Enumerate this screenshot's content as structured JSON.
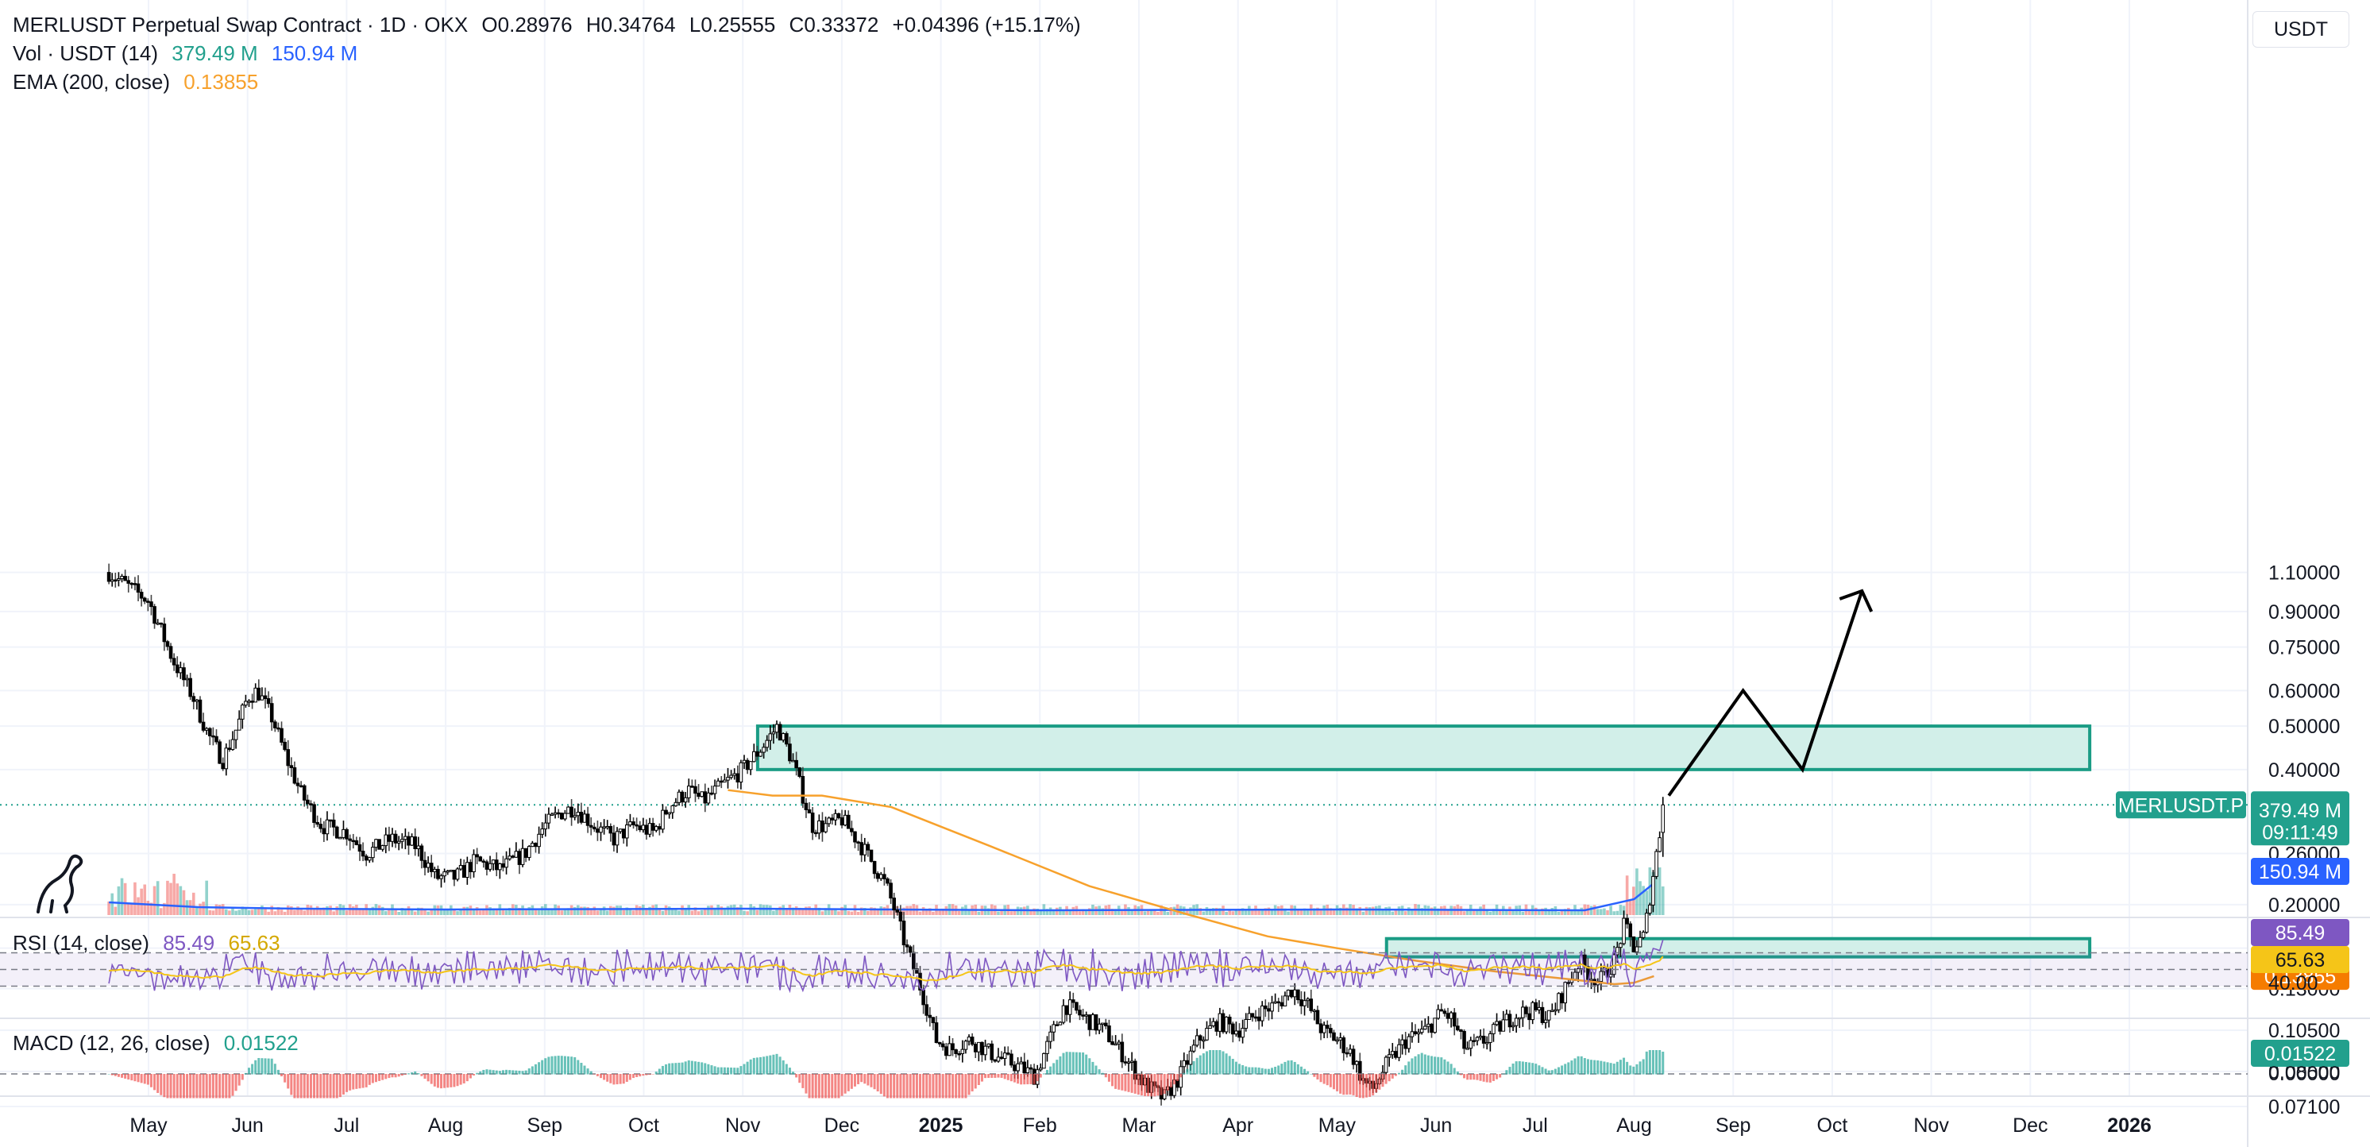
{
  "header": {
    "symbol_line": "MERLUSDT Perpetual Swap Contract · 1D · OKX",
    "open": "O0.28976",
    "high": "H0.34764",
    "low": "L0.25555",
    "close": "C0.33372",
    "change": "+0.04396 (+15.17%)",
    "vol_label": "Vol · USDT (14)",
    "vol_value": "379.49 M",
    "vol_ma": "150.94 M",
    "ema_label": "EMA (200, close)",
    "ema_value": "0.13855",
    "rsi_label": "RSI (14, close)",
    "rsi_value": "85.49",
    "rsi_ma": "65.63",
    "macd_label": "MACD (12, 26, close)",
    "macd_value": "0.01522",
    "currency": "USDT"
  },
  "colors": {
    "up": "#26a69a",
    "down": "#ef5350",
    "candle": "#000000",
    "ema": "#f7a12c",
    "vol_ma": "#2962ff",
    "rsi": "#7e57c2",
    "rsi_ma": "#f5c518",
    "zone_fill": "#d2efe9",
    "zone_stroke": "#1a9c85",
    "badge_teal": "#22a08d",
    "badge_orange": "#f57c00",
    "badge_blue": "#2962ff",
    "badge_purple": "#7e57c2",
    "badge_yellow": "#f5c518"
  },
  "chart_data": {
    "type": "candlestick",
    "title": "MERLUSDT Perpetual Swap Contract · 1D · OKX",
    "price_scale": "log",
    "y_ticks": [
      "1.10000",
      "0.90000",
      "0.75000",
      "0.60000",
      "0.50000",
      "0.40000",
      "0.26000",
      "0.20000",
      "0.16000",
      "0.13000",
      "0.10500",
      "0.08500",
      "0.07100"
    ],
    "y_tick_values": [
      1.1,
      0.9,
      0.75,
      0.6,
      0.5,
      0.4,
      0.26,
      0.2,
      0.16,
      0.13,
      0.105,
      0.085,
      0.071
    ],
    "x_ticks": [
      "May",
      "Jun",
      "Jul",
      "Aug",
      "Sep",
      "Oct",
      "Nov",
      "Dec",
      "2025",
      "Feb",
      "Mar",
      "Apr",
      "May",
      "Jun",
      "Jul",
      "Aug",
      "Sep",
      "Oct",
      "Nov",
      "Dec",
      "2026"
    ],
    "x_tick_months": [
      0,
      1,
      2,
      3,
      4,
      5,
      6,
      7,
      8,
      9,
      10,
      11,
      12,
      13,
      14,
      15,
      16,
      17,
      18,
      19,
      20
    ],
    "price_path": [
      [
        -0.4,
        1.1
      ],
      [
        0.0,
        0.95
      ],
      [
        0.25,
        0.7
      ],
      [
        0.45,
        0.58
      ],
      [
        0.6,
        0.48
      ],
      [
        0.75,
        0.42
      ],
      [
        0.9,
        0.5
      ],
      [
        1.0,
        0.58
      ],
      [
        1.1,
        0.6
      ],
      [
        1.25,
        0.52
      ],
      [
        1.4,
        0.42
      ],
      [
        1.55,
        0.35
      ],
      [
        1.75,
        0.3
      ],
      [
        2.0,
        0.29
      ],
      [
        2.2,
        0.26
      ],
      [
        2.45,
        0.28
      ],
      [
        2.7,
        0.27
      ],
      [
        2.9,
        0.23
      ],
      [
        3.1,
        0.23
      ],
      [
        3.3,
        0.25
      ],
      [
        3.55,
        0.24
      ],
      [
        3.8,
        0.26
      ],
      [
        4.0,
        0.3
      ],
      [
        4.15,
        0.32
      ],
      [
        4.3,
        0.33
      ],
      [
        4.5,
        0.3
      ],
      [
        4.7,
        0.28
      ],
      [
        4.9,
        0.3
      ],
      [
        5.1,
        0.29
      ],
      [
        5.25,
        0.33
      ],
      [
        5.45,
        0.36
      ],
      [
        5.6,
        0.34
      ],
      [
        5.8,
        0.37
      ],
      [
        6.0,
        0.4
      ],
      [
        6.2,
        0.45
      ],
      [
        6.35,
        0.5
      ],
      [
        6.5,
        0.42
      ],
      [
        6.7,
        0.3
      ],
      [
        6.85,
        0.3
      ],
      [
        7.0,
        0.31
      ],
      [
        7.15,
        0.28
      ],
      [
        7.3,
        0.25
      ],
      [
        7.45,
        0.22
      ],
      [
        7.55,
        0.19
      ],
      [
        7.65,
        0.16
      ],
      [
        7.75,
        0.14
      ],
      [
        7.85,
        0.12
      ],
      [
        7.95,
        0.1
      ],
      [
        8.1,
        0.095
      ],
      [
        8.3,
        0.1
      ],
      [
        8.55,
        0.092
      ],
      [
        8.75,
        0.088
      ],
      [
        8.95,
        0.083
      ],
      [
        9.1,
        0.1
      ],
      [
        9.25,
        0.12
      ],
      [
        9.45,
        0.112
      ],
      [
        9.65,
        0.105
      ],
      [
        9.85,
        0.092
      ],
      [
        10.05,
        0.08
      ],
      [
        10.25,
        0.074
      ],
      [
        10.4,
        0.082
      ],
      [
        10.6,
        0.1
      ],
      [
        10.8,
        0.11
      ],
      [
        11.0,
        0.105
      ],
      [
        11.2,
        0.115
      ],
      [
        11.4,
        0.12
      ],
      [
        11.55,
        0.13
      ],
      [
        11.7,
        0.12
      ],
      [
        11.85,
        0.105
      ],
      [
        12.0,
        0.1
      ],
      [
        12.15,
        0.093
      ],
      [
        12.25,
        0.082
      ],
      [
        12.35,
        0.077
      ],
      [
        12.5,
        0.088
      ],
      [
        12.7,
        0.1
      ],
      [
        12.9,
        0.105
      ],
      [
        13.05,
        0.115
      ],
      [
        13.15,
        0.112
      ],
      [
        13.3,
        0.095
      ],
      [
        13.5,
        0.1
      ],
      [
        13.7,
        0.11
      ],
      [
        13.85,
        0.115
      ],
      [
        14.0,
        0.116
      ],
      [
        14.15,
        0.112
      ],
      [
        14.3,
        0.13
      ],
      [
        14.45,
        0.15
      ],
      [
        14.55,
        0.14
      ],
      [
        14.65,
        0.135
      ],
      [
        14.8,
        0.15
      ],
      [
        14.9,
        0.18
      ],
      [
        15.0,
        0.16
      ],
      [
        15.1,
        0.17
      ],
      [
        15.2,
        0.24
      ],
      [
        15.3,
        0.33
      ]
    ],
    "ema_200": [
      [
        5.85,
        0.36
      ],
      [
        6.3,
        0.35
      ],
      [
        6.8,
        0.35
      ],
      [
        7.5,
        0.33
      ],
      [
        8.5,
        0.27
      ],
      [
        9.5,
        0.22
      ],
      [
        10.5,
        0.19
      ],
      [
        11.3,
        0.17
      ],
      [
        12.0,
        0.16
      ],
      [
        12.8,
        0.15
      ],
      [
        13.6,
        0.142
      ],
      [
        14.4,
        0.136
      ],
      [
        14.8,
        0.133
      ],
      [
        15.0,
        0.134
      ],
      [
        15.2,
        0.13855
      ]
    ],
    "current_price": 0.33372,
    "current_price_label": "MERLUSDT.P",
    "countdown": "09:11:49",
    "resistance_zone": {
      "low": 0.4,
      "high": 0.5,
      "from_month": 6.15,
      "to_month": 19.6
    },
    "support_zone": {
      "low": 0.153,
      "high": 0.168,
      "from_month": 12.5,
      "to_month": 19.6
    },
    "projection_path": [
      [
        15.35,
        0.35
      ],
      [
        16.1,
        0.6
      ],
      [
        16.7,
        0.4
      ],
      [
        17.3,
        1.0
      ]
    ],
    "volume_ma": [
      [
        -0.4,
        0.16
      ],
      [
        0.5,
        0.1
      ],
      [
        1.5,
        0.08
      ],
      [
        3,
        0.07
      ],
      [
        6,
        0.08
      ],
      [
        9,
        0.06
      ],
      [
        12,
        0.07
      ],
      [
        14.5,
        0.06
      ],
      [
        15.0,
        0.2
      ],
      [
        15.2,
        0.4
      ]
    ],
    "rsi": {
      "levels": [
        70,
        50,
        30
      ],
      "last": 85.49,
      "ma_last": 65.63
    },
    "macd": {
      "last": 0.01522
    }
  }
}
